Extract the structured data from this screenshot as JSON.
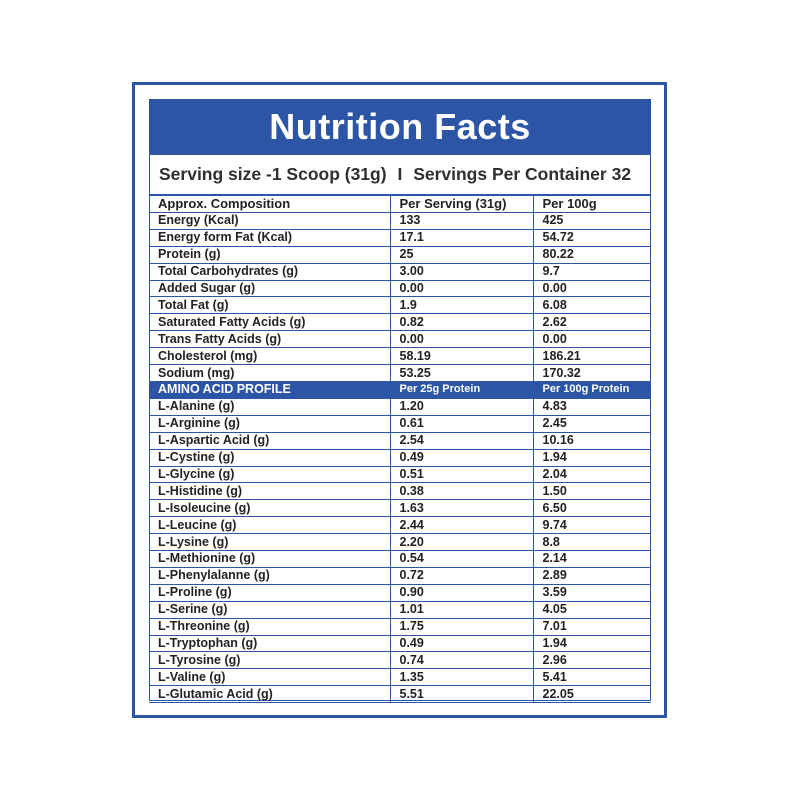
{
  "title": "Nutrition Facts",
  "serving": {
    "size": "Serving size -1 Scoop (31g)",
    "separator": "I",
    "per_container": "Servings Per Container 32"
  },
  "composition": {
    "headers": [
      "Approx. Composition",
      "Per Serving  (31g)",
      "Per 100g"
    ],
    "rows": [
      [
        "Energy (Kcal)",
        "133",
        "425"
      ],
      [
        "Energy form Fat (Kcal)",
        "17.1",
        "54.72"
      ],
      [
        "Protein (g)",
        "25",
        "80.22"
      ],
      [
        "Total Carbohydrates (g)",
        "3.00",
        "9.7"
      ],
      [
        "Added Sugar (g)",
        "0.00",
        "0.00"
      ],
      [
        "Total Fat (g)",
        "1.9",
        "6.08"
      ],
      [
        "Saturated Fatty Acids (g)",
        "0.82",
        "2.62"
      ],
      [
        "Trans Fatty Acids (g)",
        "0.00",
        "0.00"
      ],
      [
        "Cholesterol (mg)",
        "58.19",
        "186.21"
      ],
      [
        "Sodium (mg)",
        "53.25",
        "170.32"
      ]
    ]
  },
  "amino": {
    "headers": [
      "AMINO ACID PROFILE",
      "Per 25g Protein",
      "Per 100g Protein"
    ],
    "rows": [
      [
        "L-Alanine (g)",
        "1.20",
        "4.83"
      ],
      [
        "L-Arginine (g)",
        "0.61",
        "2.45"
      ],
      [
        "L-Aspartic Acid (g)",
        "2.54",
        "10.16"
      ],
      [
        "L-Cystine (g)",
        "0.49",
        "1.94"
      ],
      [
        "L-Glycine (g)",
        "0.51",
        "2.04"
      ],
      [
        "L-Histidine (g)",
        "0.38",
        "1.50"
      ],
      [
        "L-Isoleucine (g)",
        "1.63",
        "6.50"
      ],
      [
        "L-Leucine (g)",
        "2.44",
        "9.74"
      ],
      [
        "L-Lysine (g)",
        "2.20",
        "8.8"
      ],
      [
        "L-Methionine (g)",
        "0.54",
        "2.14"
      ],
      [
        "L-Phenylalanne (g)",
        "0.72",
        "2.89"
      ],
      [
        "L-Proline (g)",
        "0.90",
        "3.59"
      ],
      [
        "L-Serine (g)",
        "1.01",
        "4.05"
      ],
      [
        "L-Threonine (g)",
        "1.75",
        "7.01"
      ],
      [
        "L-Tryptophan (g)",
        "0.49",
        "1.94"
      ],
      [
        "L-Tyrosine (g)",
        "0.74",
        "2.96"
      ],
      [
        "L-Valine (g)",
        "1.35",
        "5.41"
      ],
      [
        "L-Glutamic Acid (g)",
        "5.51",
        "22.05"
      ]
    ]
  },
  "colors": {
    "accent": "#2c56a5",
    "text": "#222222",
    "background": "#ffffff"
  }
}
